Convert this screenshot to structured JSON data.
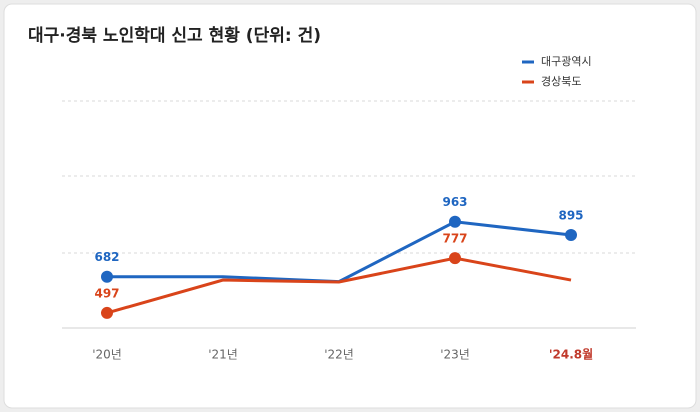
{
  "chart_data": {
    "type": "line",
    "title": "대구·경북 노인학대 신고 현황 (단위: 건)",
    "categories": [
      "'20년",
      "'21년",
      "'22년",
      "'23년",
      "'24.8월"
    ],
    "series": [
      {
        "name": "대구광역시",
        "color": "#1f66c1",
        "values": [
          682,
          682,
          657,
          963,
          895
        ],
        "value_labels": [
          "682",
          null,
          null,
          "963",
          "895"
        ]
      },
      {
        "name": "경상북도",
        "color": "#d9441a",
        "values": [
          497,
          665,
          655,
          777,
          665
        ],
        "value_labels": [
          "497",
          null,
          null,
          "777",
          null
        ]
      }
    ],
    "ylim": [
      420,
      1580
    ],
    "legend": "top-right"
  }
}
